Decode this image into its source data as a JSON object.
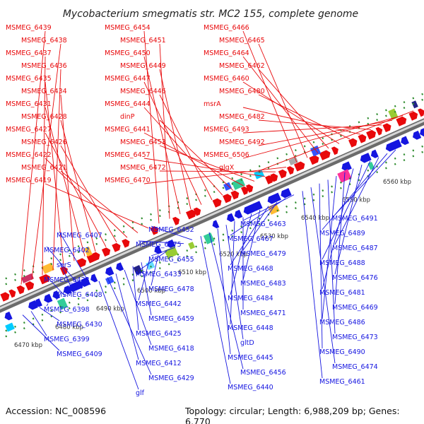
{
  "title": "Mycobacterium smegmatis str. MC2 155, complete genome",
  "footer": {
    "accession": "Accession: NC_008596",
    "topology": "Topology: circular; Length: 6,988,209 bp; Genes: 6,770"
  },
  "colors": {
    "forward": "#e8090b",
    "reverse": "#1515e0",
    "backbone": "#9a9a9a",
    "tick": "#2e8b2e"
  },
  "scale_ticks": [
    "6470 kbp",
    "6480 kbp",
    "6490 kbp",
    "6500 kbp",
    "6510 kbp",
    "6520 kbp",
    "6530 kbp",
    "6540 kbp",
    "6550 kbp",
    "6560 kbp"
  ],
  "forward_labels": [
    "MSMEG_6439",
    "MSMEG_6438",
    "MSMEG_6437",
    "MSMEG_6436",
    "MSMEG_6435",
    "MSMEG_6434",
    "MSMEG_6431",
    "MSMEG_6428",
    "MSMEG_6427",
    "MSMEG_6426",
    "MSMEG_6422",
    "MSMEG_6421",
    "MSMEG_6419",
    "MSMEG_6454",
    "MSMEG_6451",
    "MSMEG_6450",
    "MSMEG_6449",
    "MSMEG_6447",
    "MSMEG_6446",
    "MSMEG_6444",
    "dinP",
    "MSMEG_6441",
    "MSMEG_6453",
    "MSMEG_6457",
    "MSMEG_6472",
    "MSMEG_6470",
    "MSMEG_6466",
    "MSMEG_6465",
    "MSMEG_6464",
    "MSMEG_6462",
    "MSMEG_6460",
    "MSMEG_6480",
    "msrA",
    "MSMEG_6482",
    "MSMEG_6493",
    "MSMEG_6492",
    "MSMEG_6506",
    "glgX"
  ],
  "reverse_labels": [
    "MSMEG_6491",
    "MSMEG_6489",
    "MSMEG_6487",
    "MSMEG_6488",
    "MSMEG_6476",
    "MSMEG_6481",
    "MSMEG_6469",
    "MSMEG_6486",
    "MSMEG_6473",
    "MSMEG_6490",
    "MSMEG_6474",
    "MSMEG_6461",
    "MSMEG_6463",
    "MSMEG_6467",
    "MSMEG_6479",
    "MSMEG_6468",
    "MSMEG_6483",
    "MSMEG_6484",
    "MSMEG_6471",
    "MSMEG_6448",
    "gltD",
    "MSMEG_6445",
    "MSMEG_6456",
    "MSMEG_6440",
    "MSMEG_6452",
    "MSMEG_6475",
    "MSMEG_6455",
    "MSMEG_6433",
    "MSMEG_6478",
    "MSMEG_6442",
    "MSMEG_6459",
    "MSMEG_6425",
    "MSMEG_6418",
    "MSMEG_6412",
    "MSMEG_6429",
    "glf",
    "MSMEG_6407",
    "MSMEG_6402",
    "serS",
    "MSMEG_6423",
    "MSMEG_6408",
    "MSMEG_6398",
    "MSMEG_6430",
    "MSMEG_6399",
    "MSMEG_6409"
  ]
}
